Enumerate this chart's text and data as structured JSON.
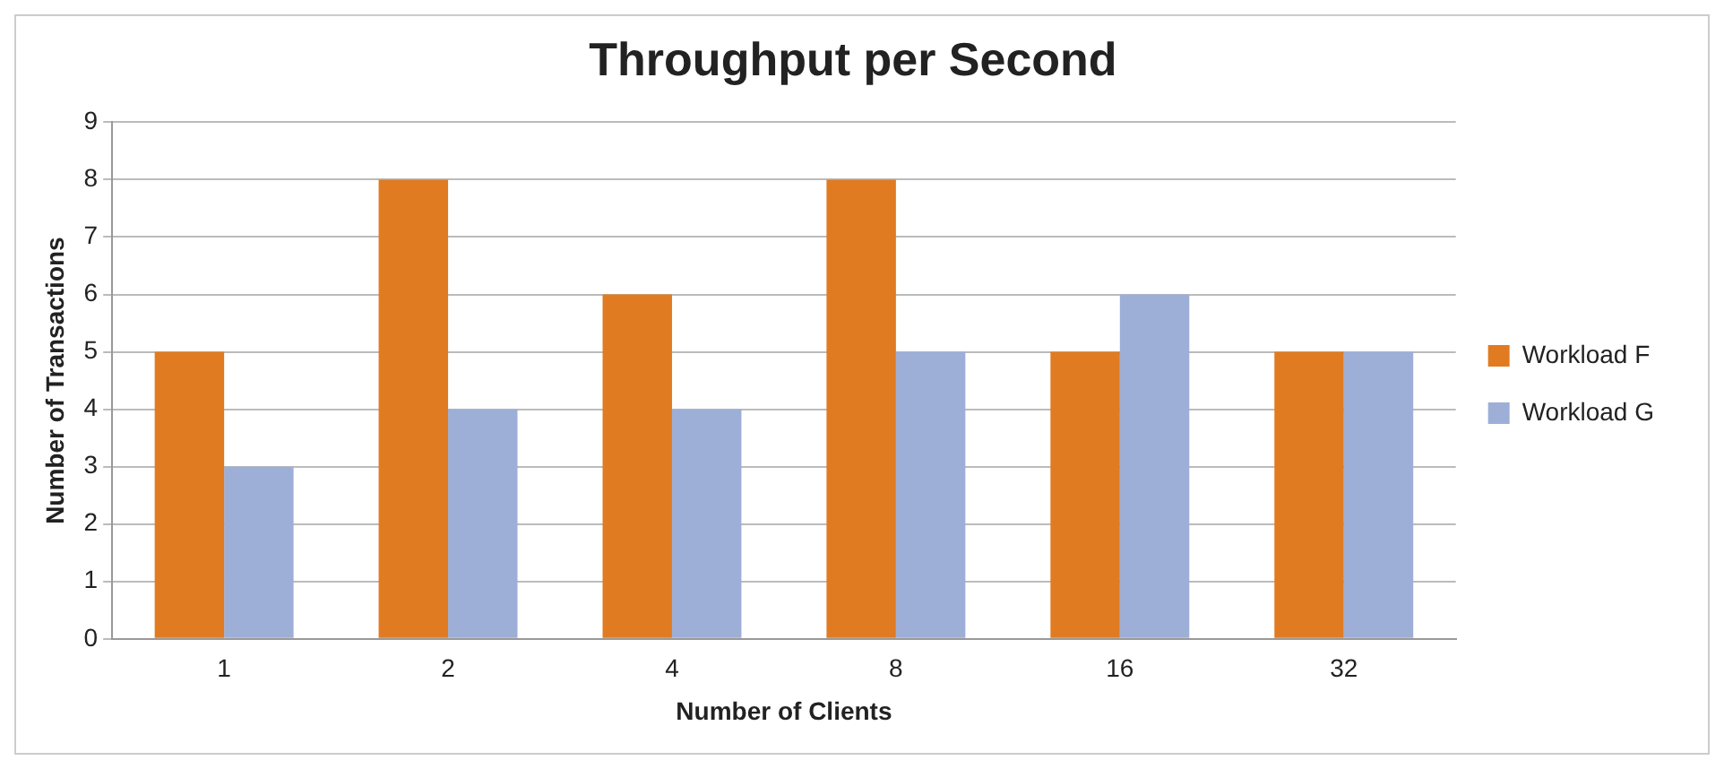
{
  "chart_data": {
    "type": "bar",
    "title": "Throughput per Second",
    "xlabel": "Number of Clients",
    "ylabel": "Number of Transactions",
    "categories": [
      "1",
      "2",
      "4",
      "8",
      "16",
      "32"
    ],
    "series": [
      {
        "name": "Workload F",
        "color": "#e07b22",
        "values": [
          5,
          8,
          6,
          8,
          5,
          5
        ]
      },
      {
        "name": "Workload G",
        "color": "#9dafd6",
        "values": [
          3,
          4,
          4,
          5,
          6,
          5
        ]
      }
    ],
    "ylim": [
      0,
      9
    ],
    "yticks": [
      0,
      1,
      2,
      3,
      4,
      5,
      6,
      7,
      8,
      9
    ],
    "grid": "y",
    "legend": "right"
  }
}
